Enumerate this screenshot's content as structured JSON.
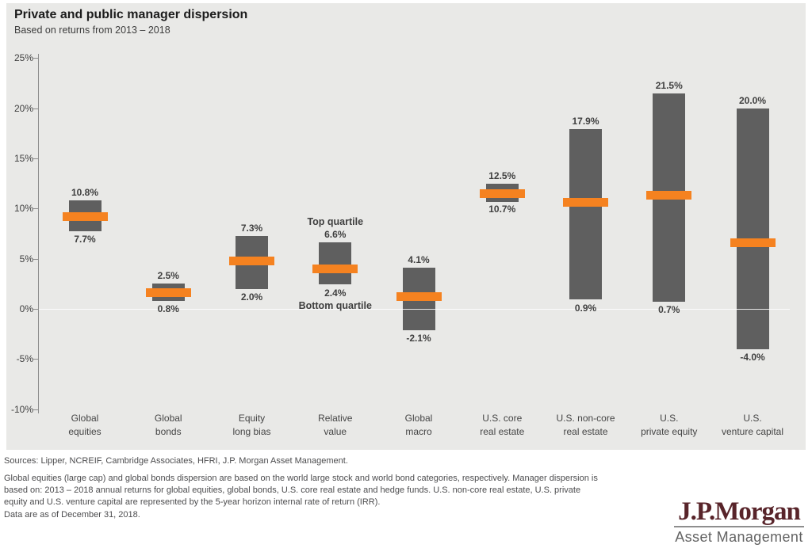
{
  "header": {
    "title": "Private and public manager dispersion",
    "subtitle": "Based on returns from 2013 – 2018"
  },
  "chart_data": {
    "type": "bar",
    "variant": "floating-range-bar-with-median-marker",
    "title": "Private and public manager dispersion",
    "subtitle": "Based on returns from 2013 – 2018",
    "ylim": [
      -10,
      25
    ],
    "yticks": [
      25,
      20,
      15,
      10,
      5,
      0,
      -5,
      -10
    ],
    "ytick_suffix": "%",
    "grid": "zero-line-only",
    "legend": "none",
    "bars": [
      {
        "category_lines": [
          "Global",
          "equities"
        ],
        "top": 10.8,
        "bottom": 7.7,
        "median": 9.2,
        "top_label": "10.8%",
        "bottom_label": "7.7%"
      },
      {
        "category_lines": [
          "Global",
          "bonds"
        ],
        "top": 2.5,
        "bottom": 0.8,
        "median": 1.6,
        "top_label": "2.5%",
        "bottom_label": "0.8%"
      },
      {
        "category_lines": [
          "Equity",
          "long bias"
        ],
        "top": 7.3,
        "bottom": 2.0,
        "median": 4.8,
        "top_label": "7.3%",
        "bottom_label": "2.0%"
      },
      {
        "category_lines": [
          "Relative",
          "value"
        ],
        "top": 6.6,
        "bottom": 2.4,
        "median": 4.0,
        "top_label": "6.6%",
        "bottom_label": "2.4%"
      },
      {
        "category_lines": [
          "Global",
          "macro"
        ],
        "top": 4.1,
        "bottom": -2.1,
        "median": 1.2,
        "top_label": "4.1%",
        "bottom_label": "-2.1%"
      },
      {
        "category_lines": [
          "U.S. core",
          "real estate"
        ],
        "top": 12.5,
        "bottom": 10.7,
        "median": 11.5,
        "top_label": "12.5%",
        "bottom_label": "10.7%"
      },
      {
        "category_lines": [
          "U.S. non-core",
          "real estate"
        ],
        "top": 17.9,
        "bottom": 0.9,
        "median": 10.6,
        "top_label": "17.9%",
        "bottom_label": "0.9%"
      },
      {
        "category_lines": [
          "U.S.",
          "private equity"
        ],
        "top": 21.5,
        "bottom": 0.7,
        "median": 11.3,
        "top_label": "21.5%",
        "bottom_label": "0.7%"
      },
      {
        "category_lines": [
          "U.S.",
          "venture capital"
        ],
        "top": 20.0,
        "bottom": -4.0,
        "median": 6.6,
        "top_label": "20.0%",
        "bottom_label": "-4.0%"
      }
    ],
    "annotations": [
      {
        "text": "Top quartile",
        "bar_index": 3,
        "anchor": "top"
      },
      {
        "text": "Bottom quartile",
        "bar_index": 3,
        "anchor": "bottom"
      }
    ],
    "colors": {
      "bar": "#5f5f5f",
      "median_marker": "#f58220",
      "panel_background": "#e9e9e7",
      "axis": "#8c8c8c",
      "zero_gridline": "#f6f6f4",
      "text": "#3f3f3f"
    }
  },
  "footer": {
    "sources": "Sources: Lipper, NCREIF, Cambridge Associates, HFRI, J.P. Morgan Asset Management.",
    "note_lines": [
      "Global equities (large cap) and global bonds dispersion are based on the world large stock and world bond categories, respectively. Manager dispersion is",
      "based on: 2013 – 2018 annual returns for global equities, global bonds, U.S. core real estate and hedge funds. U.S. non-core real estate, U.S. private",
      "equity and U.S. venture capital are represented by the 5-year horizon internal rate of return (IRR)."
    ],
    "as_of": "Data are as of December 31, 2018.",
    "logo": {
      "wordmark": "J.P.Morgan",
      "tagline": "Asset Management",
      "wordmark_color": "#58242a"
    }
  }
}
